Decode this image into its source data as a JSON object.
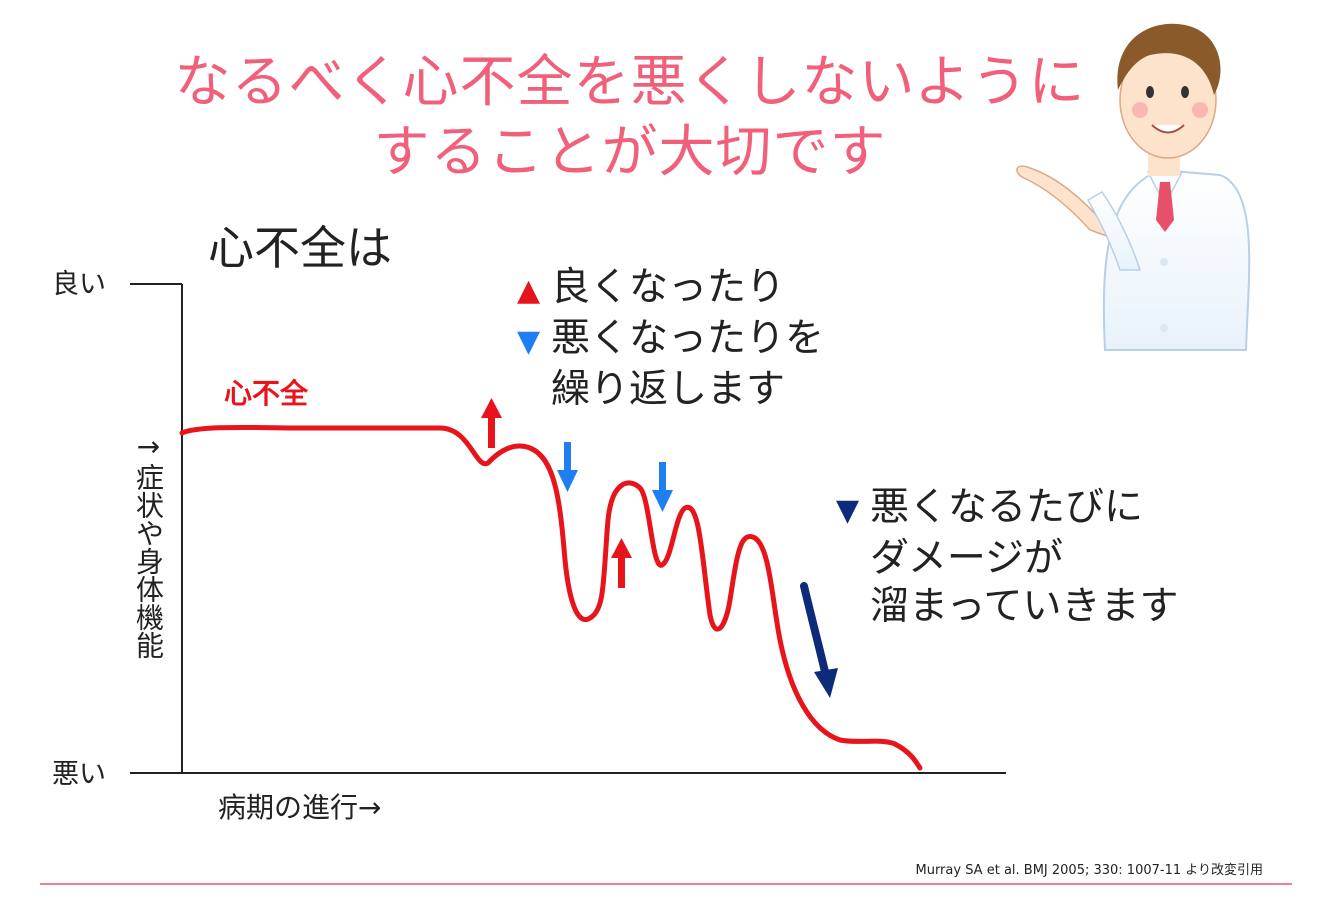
{
  "title": {
    "line1": "なるべく心不全を悪くしないように",
    "line2": "することが大切です"
  },
  "subheading": "心不全は",
  "axes": {
    "y_top_label": "良い",
    "y_bottom_label": "悪い",
    "y_axis_label": "→症状や身体機能",
    "x_axis_label": "病期の進行→"
  },
  "series": {
    "name": "心不全",
    "color": "#e8141c"
  },
  "notes": {
    "improve": "良くなったり",
    "worsen_line1": "悪くなったりを",
    "worsen_line2": "繰り返します",
    "damage_line1": "悪くなるたびに",
    "damage_line2": "ダメージが",
    "damage_line3": "溜まっていきます"
  },
  "arrow_colors": {
    "up": "#e8141c",
    "down": "#1f7ff0",
    "damage": "#0e2a7a"
  },
  "icons": [
    "up-arrow-icon",
    "down-arrow-icon",
    "doctor-illustration"
  ],
  "citation": "Murray SA et al. BMJ 2005; 330: 1007-11 より改変引用",
  "accent_color": "#f0607a"
}
